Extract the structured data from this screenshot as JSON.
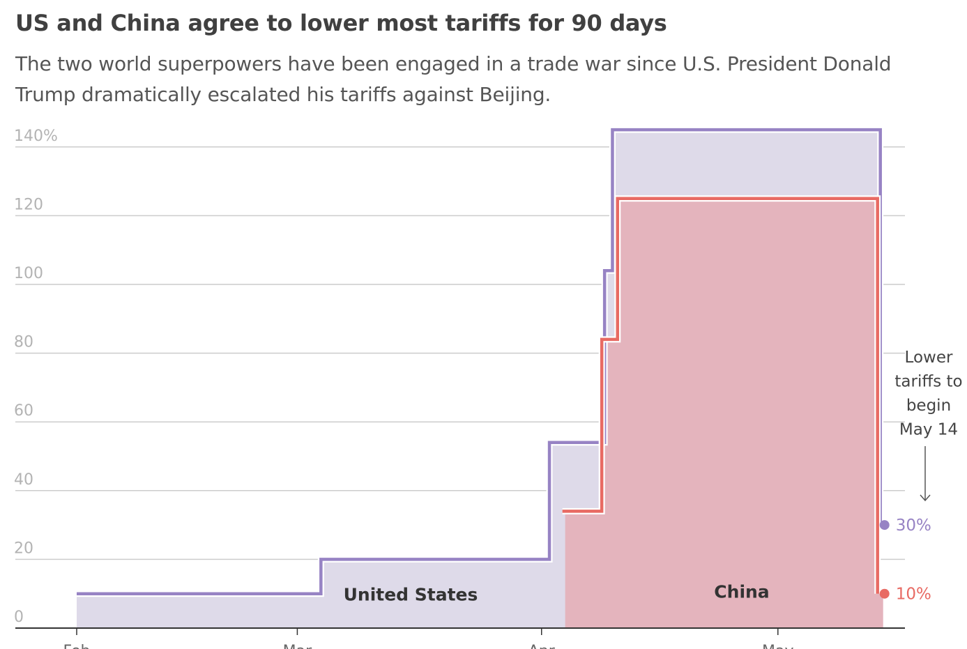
{
  "chart_data": {
    "type": "area",
    "title": "US and China agree to lower most tariffs for 90 days",
    "subtitle": "The two world superpowers have been engaged in a trade war since U.S. President Donald Trump dramatically escalated his tariffs against Beijing.",
    "ylim": [
      0,
      145
    ],
    "yticks": [
      "0",
      "20",
      "40",
      "60",
      "80",
      "100",
      "120",
      "140%"
    ],
    "ytick_values": [
      0,
      20,
      40,
      60,
      80,
      100,
      120,
      140
    ],
    "grid": true,
    "xlim": [
      "2025-02-01",
      "2025-05-15"
    ],
    "xticks": [
      {
        "date": "2025-02-01",
        "label": "Feb"
      },
      {
        "date": "2025-03-01",
        "label": "Mar"
      },
      {
        "date": "2025-04-01",
        "label": "Apr"
      },
      {
        "date": "2025-05-01",
        "label": "May"
      }
    ],
    "series": [
      {
        "name": "United States",
        "color": "#9783c4",
        "fill": "#dedae9",
        "x": [
          "2025-02-01",
          "2025-03-04",
          "2025-04-02",
          "2025-04-09",
          "2025-04-10",
          "2025-05-14"
        ],
        "values": [
          10,
          20,
          54,
          104,
          145,
          30
        ],
        "end_label": "30%"
      },
      {
        "name": "China",
        "color": "#e86a63",
        "fill": "#e4b4bd",
        "x": [
          "2025-04-04",
          "2025-04-09",
          "2025-04-11",
          "2025-05-14"
        ],
        "values": [
          34,
          84,
          125,
          10
        ],
        "end_label": "10%"
      }
    ],
    "annotation": {
      "lines": [
        "Lower",
        "tariffs to",
        "begin",
        "May 14"
      ],
      "date": "2025-05-14"
    }
  }
}
